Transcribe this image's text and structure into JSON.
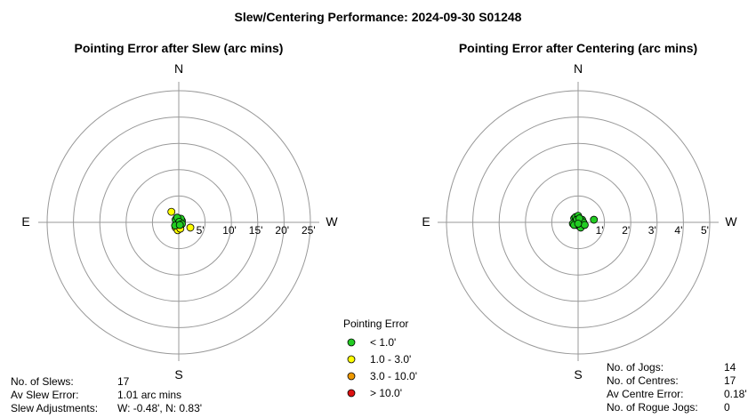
{
  "page_title": "Slew/Centering Performance: 2024-09-30 S01248",
  "colors": {
    "green": "#22cc22",
    "yellow": "#ffff00",
    "orange": "#ee9900",
    "red": "#dd1111"
  },
  "chart_data": [
    {
      "type": "scatter",
      "coordinate_system": "polar",
      "title": "Pointing Error after Slew (arc mins)",
      "directions": {
        "north": "N",
        "south": "S",
        "east": "E",
        "west": "W"
      },
      "rmax": 25,
      "ring_labels": [
        "5'",
        "10'",
        "15'",
        "20'",
        "25'"
      ],
      "points": [
        {
          "w": -0.4,
          "n": 0.8,
          "err": 0.9
        },
        {
          "w": 0.2,
          "n": 0.4,
          "err": 0.5
        },
        {
          "w": 0.6,
          "n": 0.3,
          "err": 0.7
        },
        {
          "w": -0.2,
          "n": 0.2,
          "err": 0.3
        },
        {
          "w": -0.6,
          "n": 0.5,
          "err": 0.8
        },
        {
          "w": 0.0,
          "n": 0.6,
          "err": 0.6
        },
        {
          "w": 0.4,
          "n": 0.7,
          "err": 0.8
        },
        {
          "w": -0.3,
          "n": 0.9,
          "err": 0.95
        },
        {
          "w": 0.1,
          "n": 0.1,
          "err": 0.2
        },
        {
          "w": -1.4,
          "n": 2.0,
          "err": 2.4
        },
        {
          "w": 2.2,
          "n": -1.0,
          "err": 2.4
        },
        {
          "w": -0.6,
          "n": -1.0,
          "err": 1.2
        },
        {
          "w": -0.2,
          "n": -1.5,
          "err": 1.5
        },
        {
          "w": 0.3,
          "n": -1.2,
          "err": 1.25
        },
        {
          "w": -0.7,
          "n": -0.6,
          "err": 0.92
        },
        {
          "w": 0.6,
          "n": -0.3,
          "err": 0.7
        },
        {
          "w": 0.2,
          "n": -0.5,
          "err": 0.55
        }
      ]
    },
    {
      "type": "scatter",
      "coordinate_system": "polar",
      "title": "Pointing Error after Centering (arc mins)",
      "directions": {
        "north": "N",
        "south": "S",
        "east": "E",
        "west": "W"
      },
      "rmax": 5,
      "ring_labels": [
        "1'",
        "2'",
        "3'",
        "4'",
        "5'"
      ],
      "points": [
        {
          "w": -0.15,
          "n": 0.15,
          "err": 0.2
        },
        {
          "w": 0.0,
          "n": 0.05,
          "err": 0.1
        },
        {
          "w": 0.1,
          "n": -0.05,
          "err": 0.12
        },
        {
          "w": -0.05,
          "n": -0.1,
          "err": 0.12
        },
        {
          "w": 0.15,
          "n": 0.1,
          "err": 0.18
        },
        {
          "w": 0.05,
          "n": -0.15,
          "err": 0.16
        },
        {
          "w": -0.1,
          "n": 0.2,
          "err": 0.22
        },
        {
          "w": 0.2,
          "n": 0.0,
          "err": 0.2
        },
        {
          "w": -0.2,
          "n": -0.05,
          "err": 0.2
        },
        {
          "w": 0.0,
          "n": 0.25,
          "err": 0.25
        },
        {
          "w": 0.1,
          "n": -0.2,
          "err": 0.22
        },
        {
          "w": -0.05,
          "n": 0.1,
          "err": 0.11
        },
        {
          "w": 0.25,
          "n": -0.1,
          "err": 0.27
        },
        {
          "w": 0.05,
          "n": 0.15,
          "err": 0.16
        },
        {
          "w": -0.15,
          "n": -0.1,
          "err": 0.18
        },
        {
          "w": 0.0,
          "n": -0.05,
          "err": 0.05
        },
        {
          "w": 0.6,
          "n": 0.1,
          "err": 0.6
        }
      ]
    }
  ],
  "legend": {
    "title": "Pointing Error",
    "items": [
      {
        "label": "< 1.0'",
        "color": "#22cc22"
      },
      {
        "label": "1.0 - 3.0'",
        "color": "#ffff00"
      },
      {
        "label": "3.0 - 10.0'",
        "color": "#ee9900"
      },
      {
        "label": "> 10.0'",
        "color": "#dd1111"
      }
    ]
  },
  "slew_stats": {
    "slews_label": "No. of Slews:",
    "slews_value": "17",
    "av_error_label": "Av Slew Error:",
    "av_error_value": "1.01 arc mins",
    "adjust_label": "Slew Adjustments:",
    "adjust_value": "W: -0.48', N: 0.83'"
  },
  "centre_stats": {
    "jogs_label": "No. of Jogs:",
    "jogs_value": "14",
    "centres_label": "No. of Centres:",
    "centres_value": "17",
    "av_error_label": "Av Centre Error:",
    "av_error_value": "0.18'",
    "rogue_label": "No. of Rogue Jogs:",
    "rogue_value": "0"
  }
}
